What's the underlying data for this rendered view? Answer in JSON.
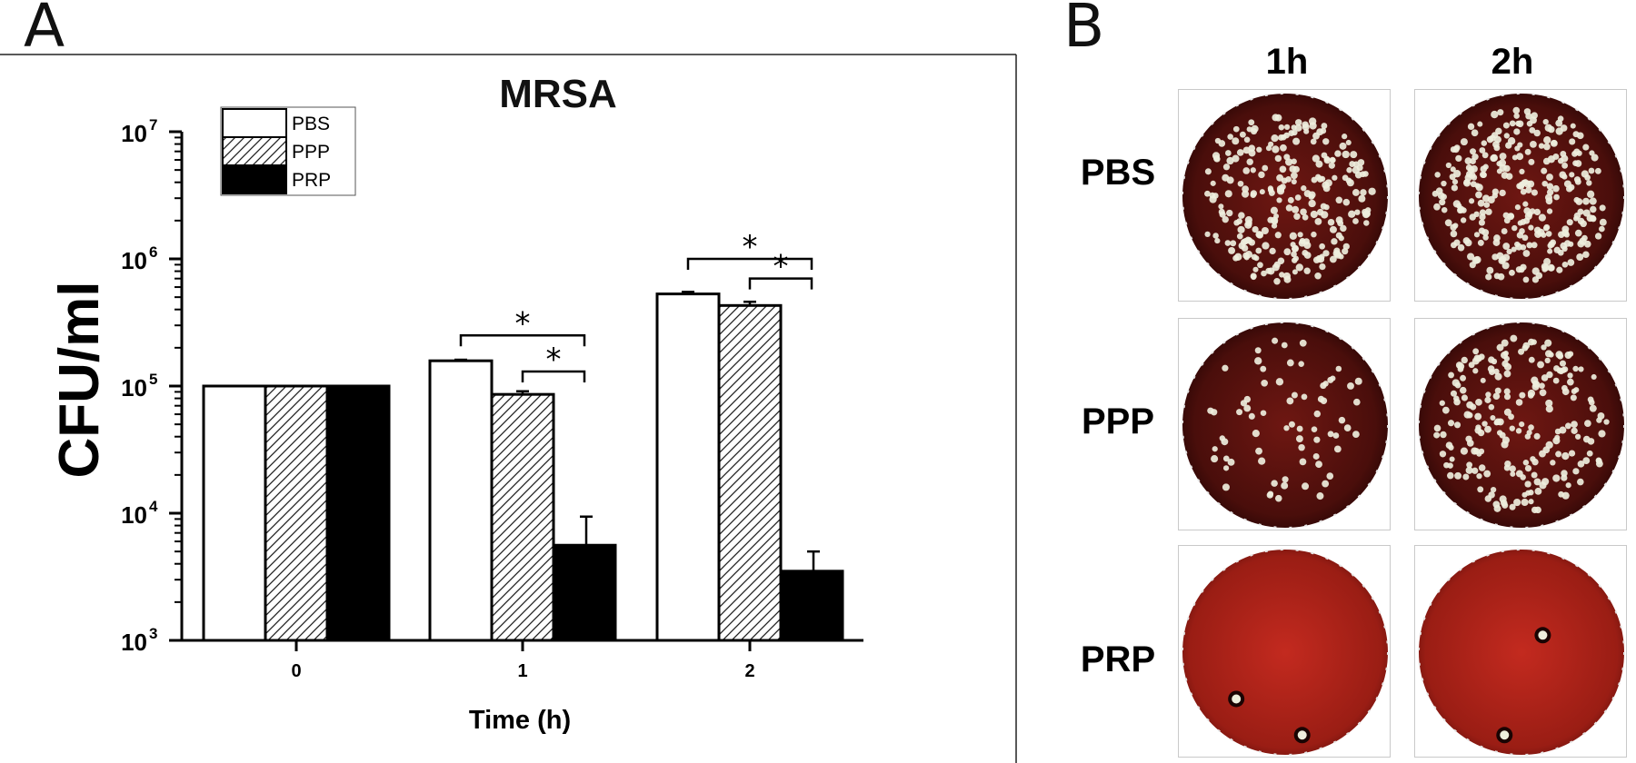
{
  "panels": {
    "a_label": "A",
    "b_label": "B"
  },
  "chart_data": {
    "type": "bar",
    "title": "MRSA",
    "xlabel": "Time (h)",
    "ylabel": "CFU/ml",
    "yscale": "log",
    "ylim": [
      1000,
      10000000
    ],
    "y_ticks": [
      {
        "base": "10",
        "exp": "3"
      },
      {
        "base": "10",
        "exp": "4"
      },
      {
        "base": "10",
        "exp": "5"
      },
      {
        "base": "10",
        "exp": "6"
      },
      {
        "base": "10",
        "exp": "7"
      }
    ],
    "categories": [
      "0",
      "1",
      "2"
    ],
    "series": [
      {
        "name": "PBS",
        "fill": "white",
        "values": [
          100000,
          158000,
          530000
        ],
        "errors": [
          0,
          3000,
          20000
        ]
      },
      {
        "name": "PPP",
        "fill": "hatch",
        "values": [
          100000,
          86000,
          430000
        ],
        "errors": [
          0,
          5000,
          30000
        ]
      },
      {
        "name": "PRP",
        "fill": "black",
        "values": [
          100000,
          5600,
          3500
        ],
        "errors": [
          0,
          3800,
          1500
        ]
      }
    ],
    "legend": [
      "PBS",
      "PPP",
      "PRP"
    ],
    "legend_position": "top-left",
    "significance": [
      {
        "category": "1",
        "from": "PBS",
        "to": "PRP",
        "label": "*",
        "level": 250000
      },
      {
        "category": "1",
        "from": "PPP",
        "to": "PRP",
        "label": "*",
        "level": 130000
      },
      {
        "category": "2",
        "from": "PBS",
        "to": "PRP",
        "label": "*",
        "level": 1000000
      },
      {
        "category": "2",
        "from": "PPP",
        "to": "PRP",
        "label": "*",
        "level": 700000
      }
    ]
  },
  "plates": {
    "columns": [
      "1h",
      "2h"
    ],
    "rows": [
      {
        "label": "PBS",
        "colonies": [
          "many",
          "many"
        ]
      },
      {
        "label": "PPP",
        "colonies": [
          "some",
          "many"
        ]
      },
      {
        "label": "PRP",
        "colonies": [
          "2",
          "2"
        ]
      }
    ],
    "colors": {
      "plate_dark": "#4a0e0b",
      "plate_mid": "#6e1712",
      "plate_bright": "#c32a1f",
      "colony": "#eeeedd"
    }
  }
}
